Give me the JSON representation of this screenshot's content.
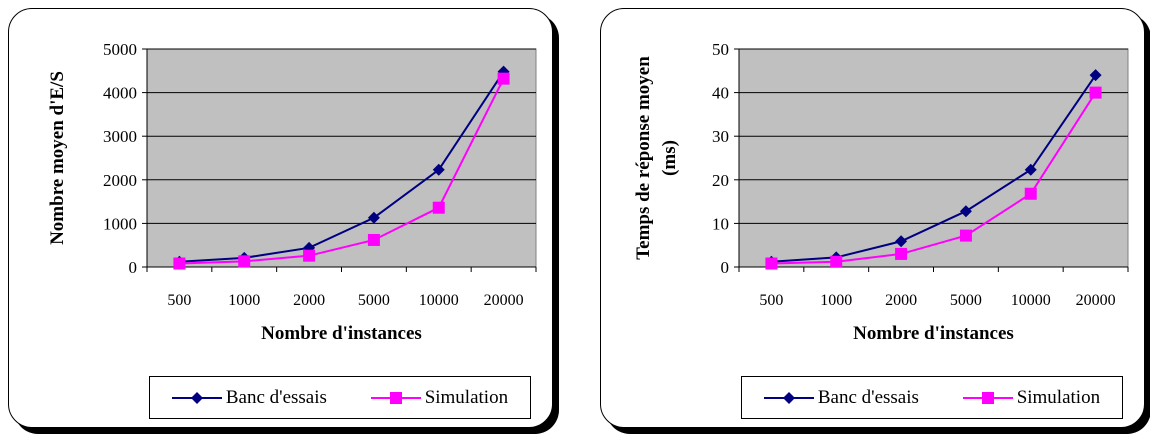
{
  "chart_data": [
    {
      "type": "line",
      "title": "",
      "xlabel": "Nombre d'instances",
      "ylabel": "Nombre moyen d'E/S",
      "categories": [
        "500",
        "1000",
        "2000",
        "5000",
        "10000",
        "20000"
      ],
      "y_ticks": [
        "0",
        "1000",
        "2000",
        "3000",
        "4000",
        "5000"
      ],
      "ylim": [
        0,
        5000
      ],
      "grid": true,
      "legend_position": "bottom",
      "series": [
        {
          "name": "Banc d'essais",
          "values": [
            120,
            210,
            440,
            1130,
            2230,
            4480
          ],
          "color": "#000080",
          "marker": "diamond"
        },
        {
          "name": "Simulation",
          "values": [
            80,
            130,
            260,
            620,
            1360,
            4320
          ],
          "color": "#ff00ff",
          "marker": "square"
        }
      ]
    },
    {
      "type": "line",
      "title": "",
      "xlabel": "Nombre d'instances",
      "ylabel": [
        "Temps de réponse moyen",
        "(ms)"
      ],
      "categories": [
        "500",
        "1000",
        "2000",
        "5000",
        "10000",
        "20000"
      ],
      "y_ticks": [
        "0",
        "10",
        "20",
        "30",
        "40",
        "50"
      ],
      "ylim": [
        0,
        50
      ],
      "grid": true,
      "legend_position": "bottom",
      "series": [
        {
          "name": "Banc d'essais",
          "values": [
            1.2,
            2.2,
            5.9,
            12.8,
            22.3,
            44
          ],
          "color": "#000080",
          "marker": "diamond"
        },
        {
          "name": "Simulation",
          "values": [
            0.8,
            1.2,
            3.0,
            7.2,
            16.8,
            40
          ],
          "color": "#ff00ff",
          "marker": "square"
        }
      ]
    }
  ],
  "style": {
    "plot_bg": "#c0c0c0",
    "grid_color": "#000000"
  }
}
